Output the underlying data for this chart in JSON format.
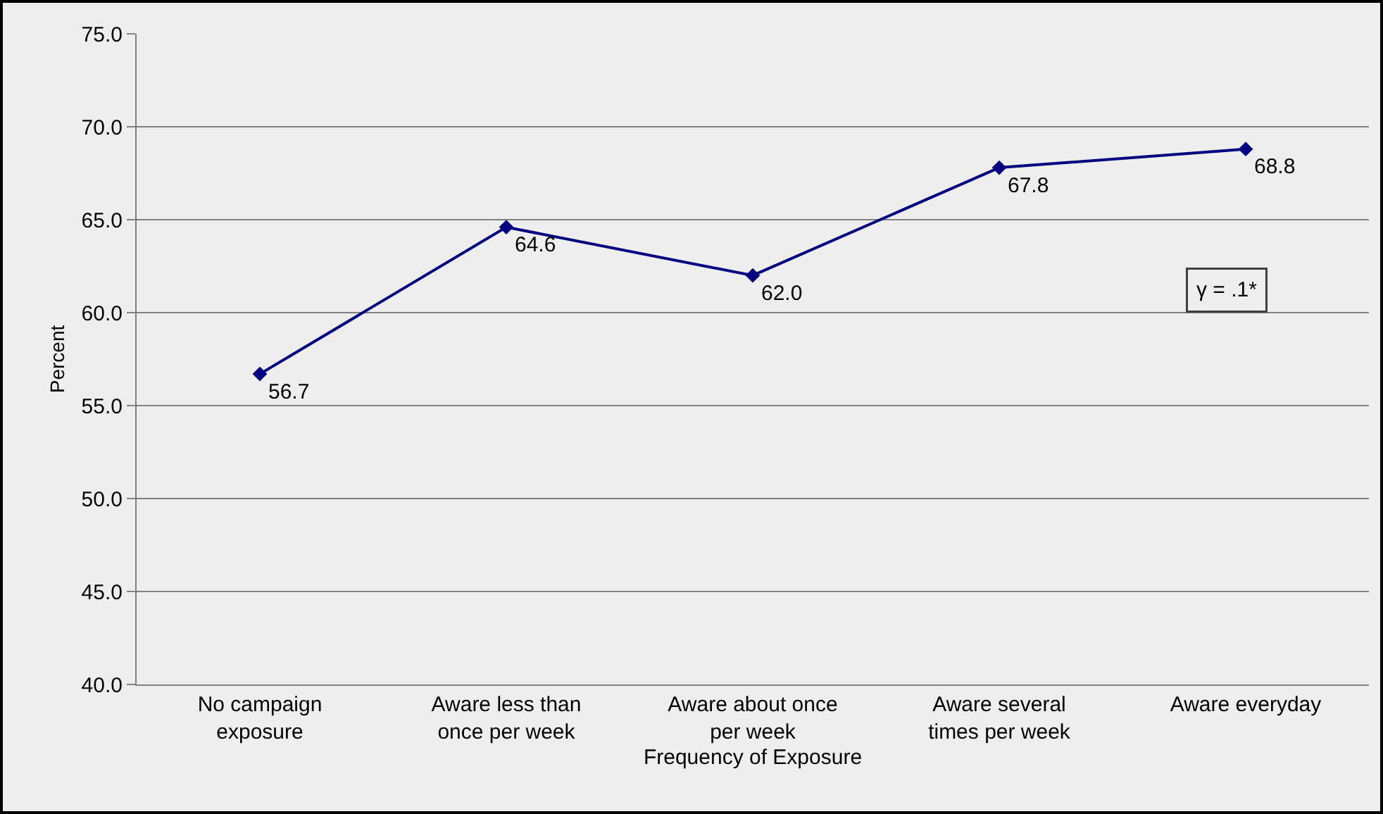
{
  "chart_data": {
    "type": "line",
    "xlabel": "Frequency of Exposure",
    "ylabel": "Percent",
    "categories": [
      "No campaign exposure",
      "Aware less than once per week",
      "Aware about once per week",
      "Aware several times per week",
      "Aware everyday"
    ],
    "series": [
      {
        "color": "#000080",
        "values": [
          56.7,
          64.6,
          62.0,
          67.8,
          68.8
        ]
      }
    ],
    "value_labels": [
      "56.7",
      "64.6",
      "62.0",
      "67.8",
      "68.8"
    ],
    "ylim": [
      40,
      75
    ],
    "yticks": [
      {
        "value": 40,
        "label": "40.0"
      },
      {
        "value": 45,
        "label": "45.0"
      },
      {
        "value": 50,
        "label": "50.0"
      },
      {
        "value": 55,
        "label": "55.0"
      },
      {
        "value": 60,
        "label": "60.0"
      },
      {
        "value": 65,
        "label": "65.0"
      },
      {
        "value": 70,
        "label": "70.0"
      },
      {
        "value": 75,
        "label": "75.0"
      }
    ],
    "grid": "y",
    "marker": "diamond",
    "line_style": "solid",
    "annotations": [
      "γ = .1*"
    ]
  }
}
